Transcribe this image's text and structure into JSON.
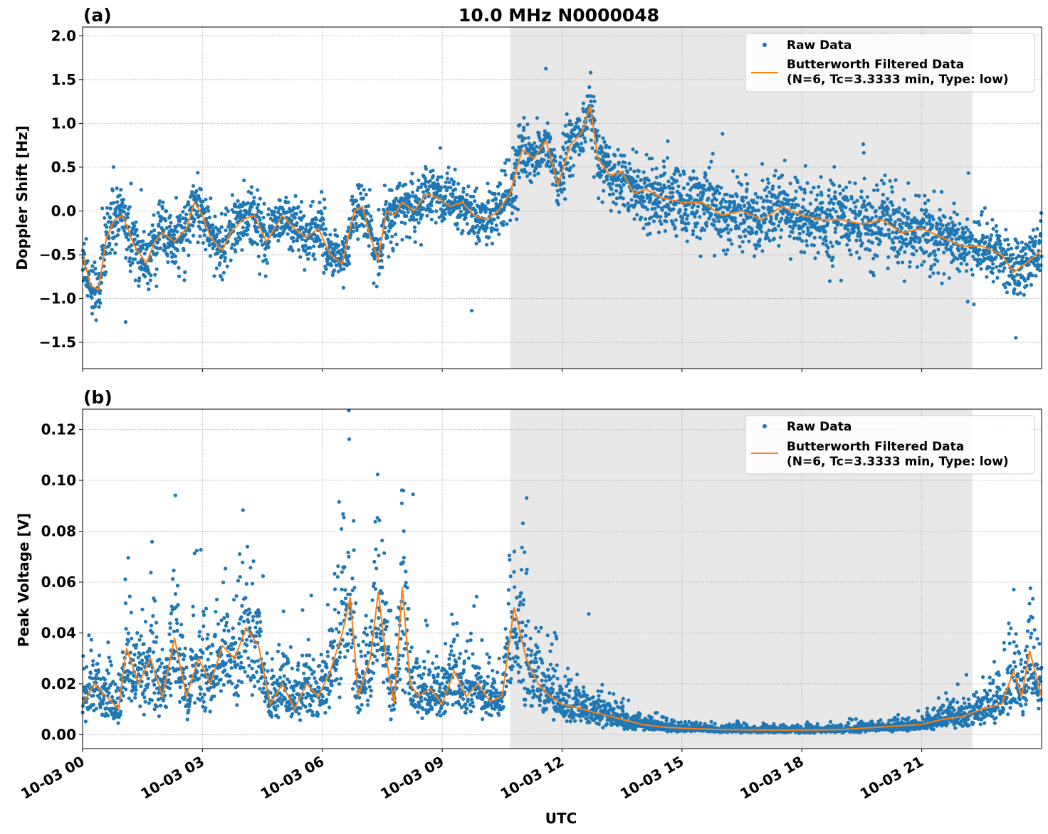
{
  "figure": {
    "title": "10.0 MHz N0000048",
    "xlabel": "UTC",
    "x_tick_labels": [
      "10-03 00",
      "10-03 03",
      "10-03 06",
      "10-03 09",
      "10-03 12",
      "10-03 15",
      "10-03 18",
      "10-03 21"
    ],
    "colors": {
      "raw": "#1f77b4",
      "filtered": "#ff7f0e",
      "shade": "#e8e8e8",
      "grid": "#b0b0b0"
    }
  },
  "chart_data": [
    {
      "type": "scatter",
      "panel_label": "(a)",
      "ylabel": "Doppler Shift [Hz]",
      "x_unit": "hours UTC on 10-03",
      "xlim": [
        0,
        24
      ],
      "ylim": [
        -1.8,
        2.1
      ],
      "y_ticks": [
        -1.5,
        -1.0,
        -0.5,
        0.0,
        0.5,
        1.0,
        1.5,
        2.0
      ],
      "y_tick_labels": [
        "−1.5",
        "−1.0",
        "−0.5",
        "0.0",
        "0.5",
        "1.0",
        "1.5",
        "2.0"
      ],
      "x_ticks": [
        0,
        3,
        6,
        9,
        12,
        15,
        18,
        21
      ],
      "grid": true,
      "legend_position": "top-right",
      "legend": [
        "Raw Data",
        "Butterworth Filtered Data",
        "(N=6, Tc=3.3333 min, Type: low)"
      ],
      "shaded_span": [
        10.7,
        22.27
      ],
      "series": [
        {
          "name": "Butterworth Filtered Data",
          "type": "line",
          "x": [
            0,
            0.2,
            0.4,
            0.6,
            0.8,
            1.0,
            1.3,
            1.6,
            1.8,
            2.0,
            2.3,
            2.6,
            2.8,
            3.0,
            3.2,
            3.5,
            3.7,
            4.0,
            4.3,
            4.6,
            5.0,
            5.3,
            5.6,
            5.9,
            6.2,
            6.5,
            6.8,
            7.0,
            7.2,
            7.4,
            7.6,
            7.8,
            8.0,
            8.3,
            8.6,
            8.9,
            9.2,
            9.5,
            9.8,
            10.1,
            10.4,
            10.7,
            11.0,
            11.3,
            11.6,
            11.9,
            12.2,
            12.5,
            12.7,
            12.9,
            13.2,
            13.5,
            13.8,
            14.1,
            14.5,
            15.0,
            15.5,
            16.0,
            16.5,
            17.0,
            17.5,
            18.0,
            18.5,
            19.0,
            19.5,
            20.0,
            20.5,
            21.0,
            21.5,
            22.0,
            22.5,
            23.0,
            23.3,
            23.6,
            24.0
          ],
          "y": [
            -0.5,
            -0.85,
            -0.9,
            -0.3,
            -0.1,
            -0.05,
            -0.4,
            -0.6,
            -0.35,
            -0.25,
            -0.35,
            -0.2,
            0.1,
            -0.05,
            -0.3,
            -0.45,
            -0.25,
            -0.1,
            -0.05,
            -0.35,
            -0.05,
            -0.2,
            -0.3,
            -0.2,
            -0.5,
            -0.6,
            0.0,
            0.05,
            -0.3,
            -0.55,
            0.0,
            -0.05,
            0.1,
            0.0,
            0.2,
            0.15,
            0.05,
            0.1,
            -0.05,
            -0.1,
            0.0,
            0.2,
            0.7,
            0.6,
            0.8,
            0.3,
            0.75,
            0.9,
            1.2,
            0.6,
            0.4,
            0.45,
            0.2,
            0.25,
            0.15,
            0.1,
            0.1,
            -0.05,
            0.0,
            -0.1,
            0.05,
            -0.05,
            -0.1,
            -0.1,
            -0.15,
            -0.1,
            -0.25,
            -0.2,
            -0.3,
            -0.4,
            -0.4,
            -0.5,
            -0.7,
            -0.6,
            -0.45
          ]
        }
      ]
    },
    {
      "type": "scatter",
      "panel_label": "(b)",
      "ylabel": "Peak Voltage [V]",
      "x_unit": "hours UTC on 10-03",
      "xlim": [
        0,
        24
      ],
      "ylim": [
        -0.0055,
        0.128
      ],
      "y_ticks": [
        0.0,
        0.02,
        0.04,
        0.06,
        0.08,
        0.1,
        0.12
      ],
      "y_tick_labels": [
        "0.00",
        "0.02",
        "0.04",
        "0.06",
        "0.08",
        "0.10",
        "0.12"
      ],
      "x_ticks": [
        0,
        3,
        6,
        9,
        12,
        15,
        18,
        21
      ],
      "grid": true,
      "legend_position": "top-right",
      "legend": [
        "Raw Data",
        "Butterworth Filtered Data",
        "(N=6, Tc=3.3333 min, Type: low)"
      ],
      "shaded_span": [
        10.7,
        22.27
      ],
      "series": [
        {
          "name": "Butterworth Filtered Data",
          "type": "line",
          "x": [
            0,
            0.3,
            0.6,
            0.9,
            1.1,
            1.4,
            1.7,
            2.0,
            2.3,
            2.6,
            2.9,
            3.2,
            3.5,
            3.8,
            4.1,
            4.4,
            4.7,
            5.0,
            5.3,
            5.6,
            5.9,
            6.2,
            6.5,
            6.7,
            6.9,
            7.2,
            7.4,
            7.6,
            7.8,
            8.0,
            8.2,
            8.4,
            8.7,
            9.0,
            9.3,
            9.6,
            9.9,
            10.2,
            10.5,
            10.8,
            11.1,
            11.4,
            11.7,
            12.0,
            12.5,
            13.0,
            13.5,
            14.0,
            14.5,
            15.0,
            16.0,
            17.0,
            18.0,
            19.0,
            20.0,
            21.0,
            21.5,
            22.0,
            22.5,
            23.0,
            23.3,
            23.5,
            23.7,
            24.0
          ],
          "y": [
            0.012,
            0.02,
            0.015,
            0.01,
            0.034,
            0.02,
            0.03,
            0.015,
            0.038,
            0.015,
            0.03,
            0.02,
            0.035,
            0.03,
            0.042,
            0.035,
            0.012,
            0.02,
            0.01,
            0.02,
            0.015,
            0.025,
            0.04,
            0.054,
            0.015,
            0.03,
            0.056,
            0.03,
            0.012,
            0.058,
            0.02,
            0.015,
            0.018,
            0.012,
            0.025,
            0.015,
            0.02,
            0.013,
            0.015,
            0.05,
            0.03,
            0.02,
            0.015,
            0.012,
            0.01,
            0.008,
            0.006,
            0.004,
            0.003,
            0.0025,
            0.002,
            0.0018,
            0.0018,
            0.002,
            0.003,
            0.004,
            0.006,
            0.007,
            0.01,
            0.012,
            0.025,
            0.015,
            0.033,
            0.015
          ]
        }
      ]
    }
  ]
}
